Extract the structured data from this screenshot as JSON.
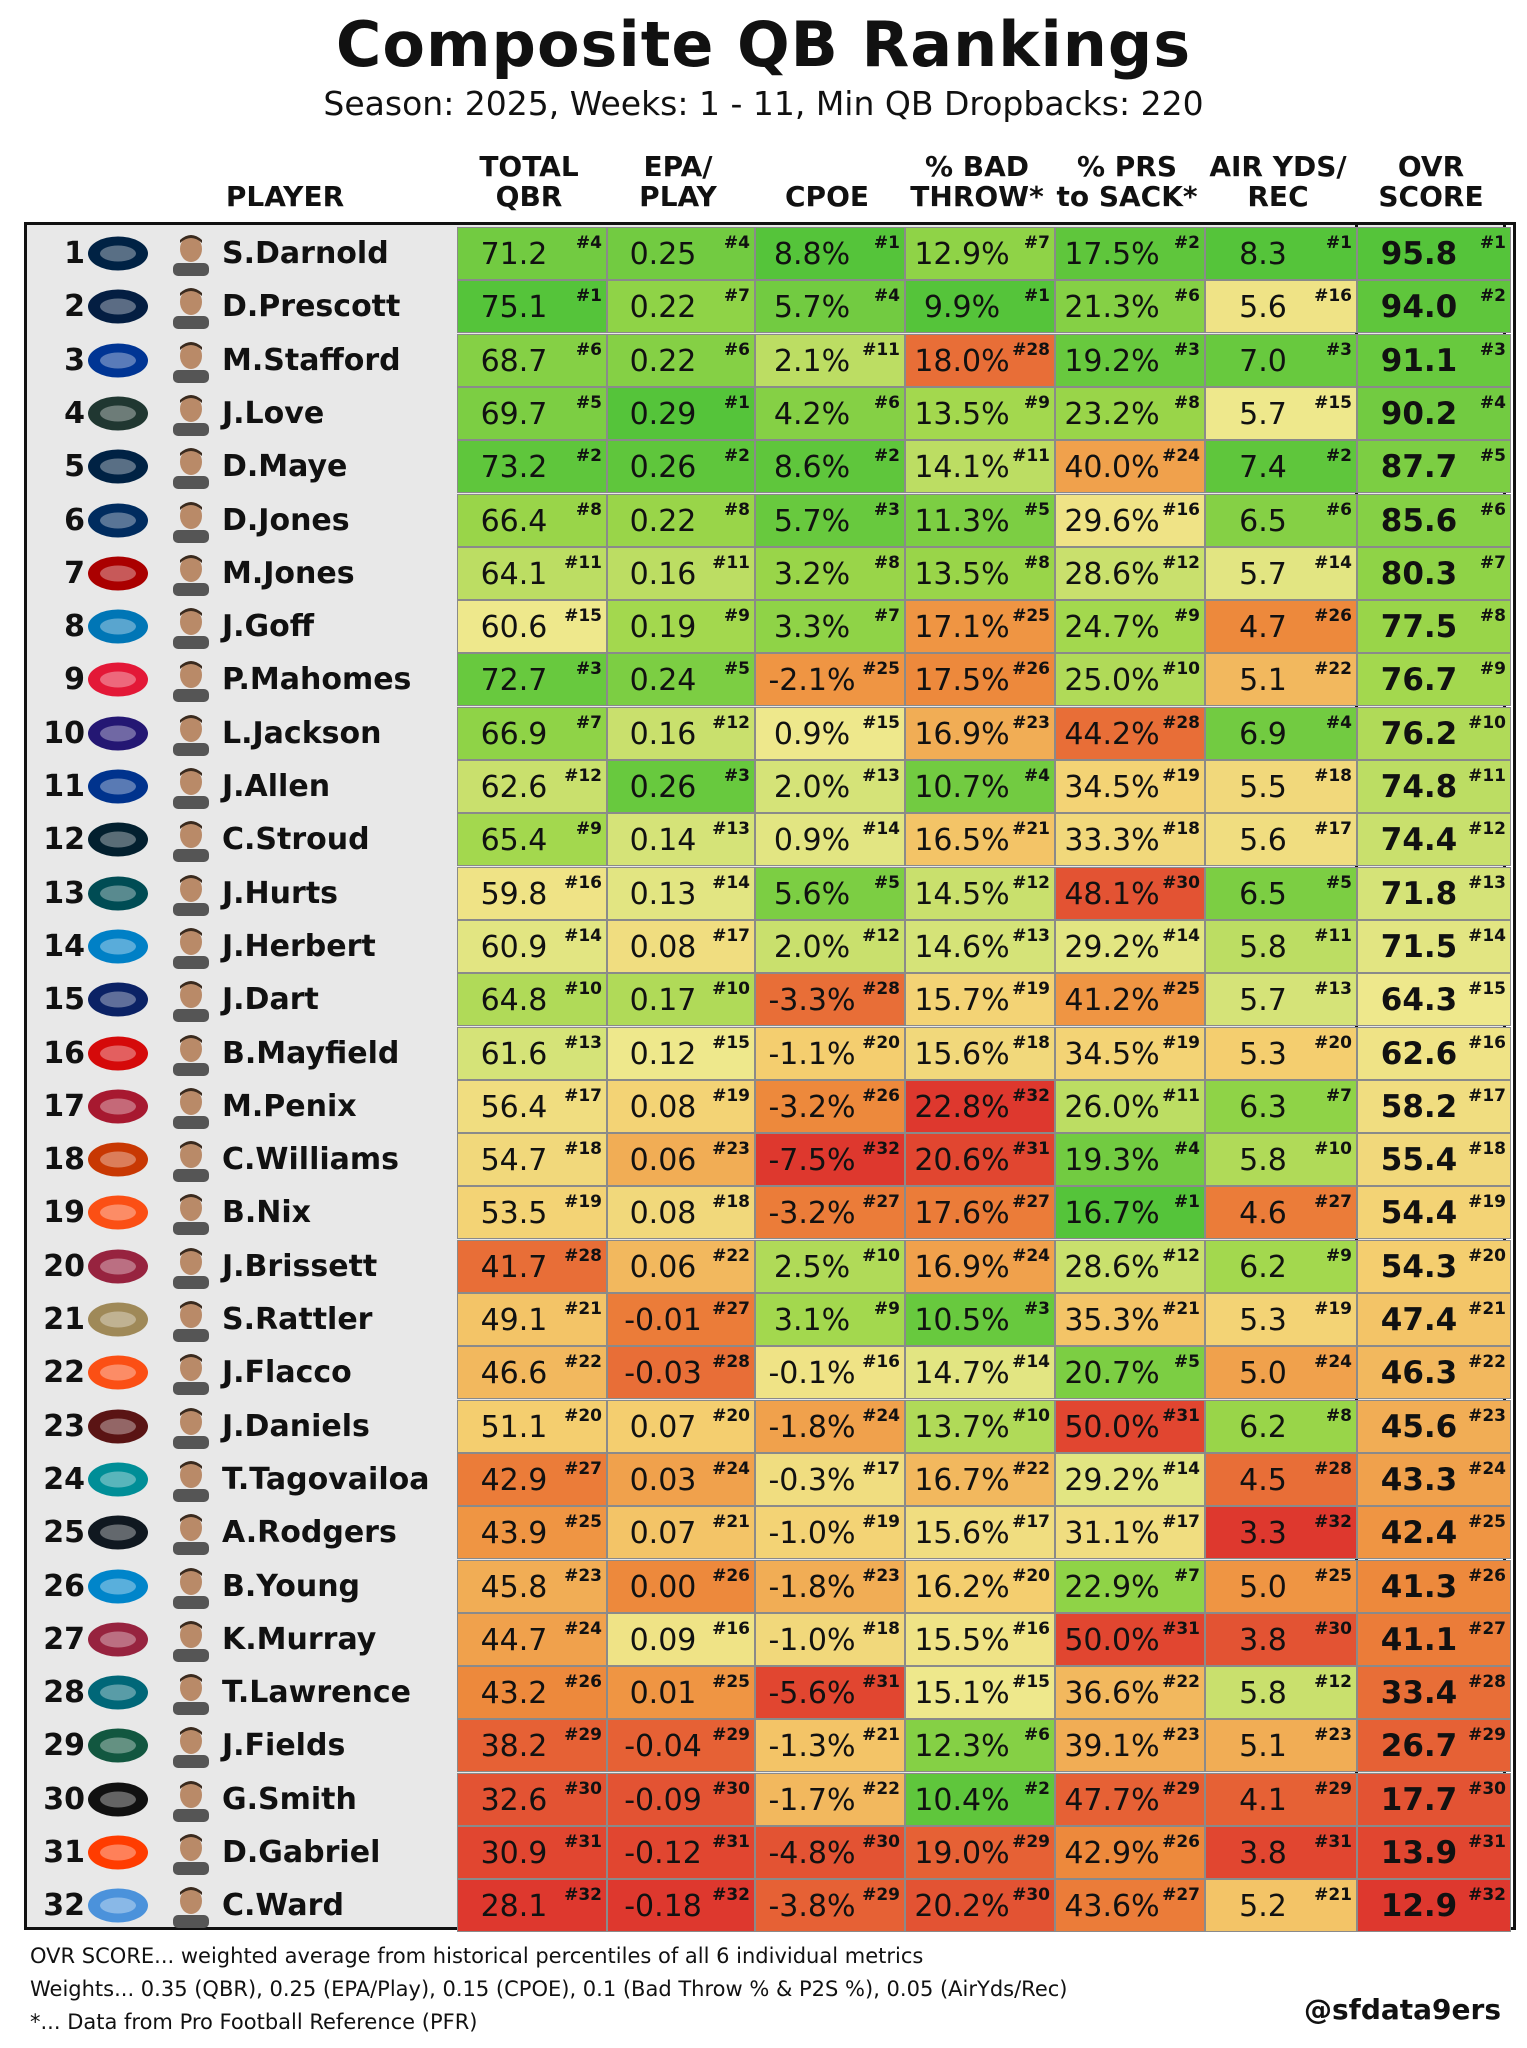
{
  "title": "Composite QB Rankings",
  "subtitle": "Season: 2025, Weeks: 1 - 11, Min QB Dropbacks: 220",
  "footer": {
    "line1": "OVR SCORE... weighted average from historical percentiles of all 6 individual metrics",
    "line2": "Weights... 0.35 (QBR), 0.25 (EPA/Play), 0.15 (CPOE), 0.1 (Bad Throw % & P2S %), 0.05 (AirYds/Rec)",
    "line3": "*... Data from Pro Football Reference (PFR)",
    "handle": "@sfdata9ers"
  },
  "chart_data": {
    "type": "table",
    "title": "Composite QB Rankings",
    "subtitle": "Season: 2025, Weeks: 1 - 11, Min QB Dropbacks: 220",
    "columns": [
      {
        "key": "player",
        "label": "PLAYER"
      },
      {
        "key": "qbr",
        "label": "TOTAL\nQBR"
      },
      {
        "key": "epa",
        "label": "EPA/\nPLAY"
      },
      {
        "key": "cpoe",
        "label": "CPOE"
      },
      {
        "key": "bad",
        "label": "% BAD\nTHROW*"
      },
      {
        "key": "prs",
        "label": "% PRS\nto SACK*"
      },
      {
        "key": "air",
        "label": "AIR YDS/\nREC"
      },
      {
        "key": "ovr",
        "label": "OVR\nSCORE"
      }
    ],
    "colors": {
      "best": "#55c43a",
      "mid": "#f5e88d",
      "worst": "#e03c31"
    },
    "rows": [
      {
        "rank": "1",
        "player": "S.Darnold",
        "team_icon": "seahawks-logo-icon",
        "qbr": [
          "71.2",
          4
        ],
        "epa": [
          "0.25",
          4
        ],
        "cpoe": [
          "8.8%",
          1
        ],
        "bad": [
          "12.9%",
          7
        ],
        "prs": [
          "17.5%",
          2
        ],
        "air": [
          "8.3",
          1
        ],
        "ovr": [
          "95.8",
          1
        ]
      },
      {
        "rank": "2",
        "player": "D.Prescott",
        "team_icon": "cowboys-logo-icon",
        "qbr": [
          "75.1",
          1
        ],
        "epa": [
          "0.22",
          7
        ],
        "cpoe": [
          "5.7%",
          4
        ],
        "bad": [
          "9.9%",
          1
        ],
        "prs": [
          "21.3%",
          6
        ],
        "air": [
          "5.6",
          16
        ],
        "ovr": [
          "94.0",
          2
        ]
      },
      {
        "rank": "3",
        "player": "M.Stafford",
        "team_icon": "rams-logo-icon",
        "qbr": [
          "68.7",
          6
        ],
        "epa": [
          "0.22",
          6
        ],
        "cpoe": [
          "2.1%",
          11
        ],
        "bad": [
          "18.0%",
          28
        ],
        "prs": [
          "19.2%",
          3
        ],
        "air": [
          "7.0",
          3
        ],
        "ovr": [
          "91.1",
          3
        ]
      },
      {
        "rank": "4",
        "player": "J.Love",
        "team_icon": "packers-logo-icon",
        "qbr": [
          "69.7",
          5
        ],
        "epa": [
          "0.29",
          1
        ],
        "cpoe": [
          "4.2%",
          6
        ],
        "bad": [
          "13.5%",
          9
        ],
        "prs": [
          "23.2%",
          8
        ],
        "air": [
          "5.7",
          15
        ],
        "ovr": [
          "90.2",
          4
        ]
      },
      {
        "rank": "5",
        "player": "D.Maye",
        "team_icon": "patriots-logo-icon",
        "qbr": [
          "73.2",
          2
        ],
        "epa": [
          "0.26",
          2
        ],
        "cpoe": [
          "8.6%",
          2
        ],
        "bad": [
          "14.1%",
          11
        ],
        "prs": [
          "40.0%",
          24
        ],
        "air": [
          "7.4",
          2
        ],
        "ovr": [
          "87.7",
          5
        ]
      },
      {
        "rank": "6",
        "player": "D.Jones",
        "team_icon": "colts-logo-icon",
        "qbr": [
          "66.4",
          8
        ],
        "epa": [
          "0.22",
          8
        ],
        "cpoe": [
          "5.7%",
          3
        ],
        "bad": [
          "11.3%",
          5
        ],
        "prs": [
          "29.6%",
          16
        ],
        "air": [
          "6.5",
          6
        ],
        "ovr": [
          "85.6",
          6
        ]
      },
      {
        "rank": "7",
        "player": "M.Jones",
        "team_icon": "49ers-logo-icon",
        "qbr": [
          "64.1",
          11
        ],
        "epa": [
          "0.16",
          11
        ],
        "cpoe": [
          "3.2%",
          8
        ],
        "bad": [
          "13.5%",
          8
        ],
        "prs": [
          "28.6%",
          12
        ],
        "air": [
          "5.7",
          14
        ],
        "ovr": [
          "80.3",
          7
        ]
      },
      {
        "rank": "8",
        "player": "J.Goff",
        "team_icon": "lions-logo-icon",
        "qbr": [
          "60.6",
          15
        ],
        "epa": [
          "0.19",
          9
        ],
        "cpoe": [
          "3.3%",
          7
        ],
        "bad": [
          "17.1%",
          25
        ],
        "prs": [
          "24.7%",
          9
        ],
        "air": [
          "4.7",
          26
        ],
        "ovr": [
          "77.5",
          8
        ]
      },
      {
        "rank": "9",
        "player": "P.Mahomes",
        "team_icon": "chiefs-logo-icon",
        "qbr": [
          "72.7",
          3
        ],
        "epa": [
          "0.24",
          5
        ],
        "cpoe": [
          "-2.1%",
          25
        ],
        "bad": [
          "17.5%",
          26
        ],
        "prs": [
          "25.0%",
          10
        ],
        "air": [
          "5.1",
          22
        ],
        "ovr": [
          "76.7",
          9
        ]
      },
      {
        "rank": "10",
        "player": "L.Jackson",
        "team_icon": "ravens-logo-icon",
        "qbr": [
          "66.9",
          7
        ],
        "epa": [
          "0.16",
          12
        ],
        "cpoe": [
          "0.9%",
          15
        ],
        "bad": [
          "16.9%",
          23
        ],
        "prs": [
          "44.2%",
          28
        ],
        "air": [
          "6.9",
          4
        ],
        "ovr": [
          "76.2",
          10
        ]
      },
      {
        "rank": "11",
        "player": "J.Allen",
        "team_icon": "bills-logo-icon",
        "qbr": [
          "62.6",
          12
        ],
        "epa": [
          "0.26",
          3
        ],
        "cpoe": [
          "2.0%",
          13
        ],
        "bad": [
          "10.7%",
          4
        ],
        "prs": [
          "34.5%",
          19
        ],
        "air": [
          "5.5",
          18
        ],
        "ovr": [
          "74.8",
          11
        ]
      },
      {
        "rank": "12",
        "player": "C.Stroud",
        "team_icon": "texans-logo-icon",
        "qbr": [
          "65.4",
          9
        ],
        "epa": [
          "0.14",
          13
        ],
        "cpoe": [
          "0.9%",
          14
        ],
        "bad": [
          "16.5%",
          21
        ],
        "prs": [
          "33.3%",
          18
        ],
        "air": [
          "5.6",
          17
        ],
        "ovr": [
          "74.4",
          12
        ]
      },
      {
        "rank": "13",
        "player": "J.Hurts",
        "team_icon": "eagles-logo-icon",
        "qbr": [
          "59.8",
          16
        ],
        "epa": [
          "0.13",
          14
        ],
        "cpoe": [
          "5.6%",
          5
        ],
        "bad": [
          "14.5%",
          12
        ],
        "prs": [
          "48.1%",
          30
        ],
        "air": [
          "6.5",
          5
        ],
        "ovr": [
          "71.8",
          13
        ]
      },
      {
        "rank": "14",
        "player": "J.Herbert",
        "team_icon": "chargers-logo-icon",
        "qbr": [
          "60.9",
          14
        ],
        "epa": [
          "0.08",
          17
        ],
        "cpoe": [
          "2.0%",
          12
        ],
        "bad": [
          "14.6%",
          13
        ],
        "prs": [
          "29.2%",
          14
        ],
        "air": [
          "5.8",
          11
        ],
        "ovr": [
          "71.5",
          14
        ]
      },
      {
        "rank": "15",
        "player": "J.Dart",
        "team_icon": "giants-logo-icon",
        "qbr": [
          "64.8",
          10
        ],
        "epa": [
          "0.17",
          10
        ],
        "cpoe": [
          "-3.3%",
          28
        ],
        "bad": [
          "15.7%",
          19
        ],
        "prs": [
          "41.2%",
          25
        ],
        "air": [
          "5.7",
          13
        ],
        "ovr": [
          "64.3",
          15
        ]
      },
      {
        "rank": "16",
        "player": "B.Mayfield",
        "team_icon": "buccaneers-logo-icon",
        "qbr": [
          "61.6",
          13
        ],
        "epa": [
          "0.12",
          15
        ],
        "cpoe": [
          "-1.1%",
          20
        ],
        "bad": [
          "15.6%",
          18
        ],
        "prs": [
          "34.5%",
          19
        ],
        "air": [
          "5.3",
          20
        ],
        "ovr": [
          "62.6",
          16
        ]
      },
      {
        "rank": "17",
        "player": "M.Penix",
        "team_icon": "falcons-logo-icon",
        "qbr": [
          "56.4",
          17
        ],
        "epa": [
          "0.08",
          19
        ],
        "cpoe": [
          "-3.2%",
          26
        ],
        "bad": [
          "22.8%",
          32
        ],
        "prs": [
          "26.0%",
          11
        ],
        "air": [
          "6.3",
          7
        ],
        "ovr": [
          "58.2",
          17
        ]
      },
      {
        "rank": "18",
        "player": "C.Williams",
        "team_icon": "bears-logo-icon",
        "qbr": [
          "54.7",
          18
        ],
        "epa": [
          "0.06",
          23
        ],
        "cpoe": [
          "-7.5%",
          32
        ],
        "bad": [
          "20.6%",
          31
        ],
        "prs": [
          "19.3%",
          4
        ],
        "air": [
          "5.8",
          10
        ],
        "ovr": [
          "55.4",
          18
        ]
      },
      {
        "rank": "19",
        "player": "B.Nix",
        "team_icon": "broncos-logo-icon",
        "qbr": [
          "53.5",
          19
        ],
        "epa": [
          "0.08",
          18
        ],
        "cpoe": [
          "-3.2%",
          27
        ],
        "bad": [
          "17.6%",
          27
        ],
        "prs": [
          "16.7%",
          1
        ],
        "air": [
          "4.6",
          27
        ],
        "ovr": [
          "54.4",
          19
        ]
      },
      {
        "rank": "20",
        "player": "J.Brissett",
        "team_icon": "cardinals-logo-icon",
        "qbr": [
          "41.7",
          28
        ],
        "epa": [
          "0.06",
          22
        ],
        "cpoe": [
          "2.5%",
          10
        ],
        "bad": [
          "16.9%",
          24
        ],
        "prs": [
          "28.6%",
          12
        ],
        "air": [
          "6.2",
          9
        ],
        "ovr": [
          "54.3",
          20
        ]
      },
      {
        "rank": "21",
        "player": "S.Rattler",
        "team_icon": "saints-logo-icon",
        "qbr": [
          "49.1",
          21
        ],
        "epa": [
          "-0.01",
          27
        ],
        "cpoe": [
          "3.1%",
          9
        ],
        "bad": [
          "10.5%",
          3
        ],
        "prs": [
          "35.3%",
          21
        ],
        "air": [
          "5.3",
          19
        ],
        "ovr": [
          "47.4",
          21
        ]
      },
      {
        "rank": "22",
        "player": "J.Flacco",
        "team_icon": "bengals-logo-icon",
        "qbr": [
          "46.6",
          22
        ],
        "epa": [
          "-0.03",
          28
        ],
        "cpoe": [
          "-0.1%",
          16
        ],
        "bad": [
          "14.7%",
          14
        ],
        "prs": [
          "20.7%",
          5
        ],
        "air": [
          "5.0",
          24
        ],
        "ovr": [
          "46.3",
          22
        ]
      },
      {
        "rank": "23",
        "player": "J.Daniels",
        "team_icon": "commanders-logo-icon",
        "qbr": [
          "51.1",
          20
        ],
        "epa": [
          "0.07",
          20
        ],
        "cpoe": [
          "-1.8%",
          24
        ],
        "bad": [
          "13.7%",
          10
        ],
        "prs": [
          "50.0%",
          31
        ],
        "air": [
          "6.2",
          8
        ],
        "ovr": [
          "45.6",
          23
        ]
      },
      {
        "rank": "24",
        "player": "T.Tagovailoa",
        "team_icon": "dolphins-logo-icon",
        "qbr": [
          "42.9",
          27
        ],
        "epa": [
          "0.03",
          24
        ],
        "cpoe": [
          "-0.3%",
          17
        ],
        "bad": [
          "16.7%",
          22
        ],
        "prs": [
          "29.2%",
          14
        ],
        "air": [
          "4.5",
          28
        ],
        "ovr": [
          "43.3",
          24
        ]
      },
      {
        "rank": "25",
        "player": "A.Rodgers",
        "team_icon": "steelers-logo-icon",
        "qbr": [
          "43.9",
          25
        ],
        "epa": [
          "0.07",
          21
        ],
        "cpoe": [
          "-1.0%",
          19
        ],
        "bad": [
          "15.6%",
          17
        ],
        "prs": [
          "31.1%",
          17
        ],
        "air": [
          "3.3",
          32
        ],
        "ovr": [
          "42.4",
          25
        ]
      },
      {
        "rank": "26",
        "player": "B.Young",
        "team_icon": "panthers-logo-icon",
        "qbr": [
          "45.8",
          23
        ],
        "epa": [
          "0.00",
          26
        ],
        "cpoe": [
          "-1.8%",
          23
        ],
        "bad": [
          "16.2%",
          20
        ],
        "prs": [
          "22.9%",
          7
        ],
        "air": [
          "5.0",
          25
        ],
        "ovr": [
          "41.3",
          26
        ]
      },
      {
        "rank": "27",
        "player": "K.Murray",
        "team_icon": "cardinals-logo-icon",
        "qbr": [
          "44.7",
          24
        ],
        "epa": [
          "0.09",
          16
        ],
        "cpoe": [
          "-1.0%",
          18
        ],
        "bad": [
          "15.5%",
          16
        ],
        "prs": [
          "50.0%",
          31
        ],
        "air": [
          "3.8",
          30
        ],
        "ovr": [
          "41.1",
          27
        ]
      },
      {
        "rank": "28",
        "player": "T.Lawrence",
        "team_icon": "jaguars-logo-icon",
        "qbr": [
          "43.2",
          26
        ],
        "epa": [
          "0.01",
          25
        ],
        "cpoe": [
          "-5.6%",
          31
        ],
        "bad": [
          "15.1%",
          15
        ],
        "prs": [
          "36.6%",
          22
        ],
        "air": [
          "5.8",
          12
        ],
        "ovr": [
          "33.4",
          28
        ]
      },
      {
        "rank": "29",
        "player": "J.Fields",
        "team_icon": "jets-logo-icon",
        "qbr": [
          "38.2",
          29
        ],
        "epa": [
          "-0.04",
          29
        ],
        "cpoe": [
          "-1.3%",
          21
        ],
        "bad": [
          "12.3%",
          6
        ],
        "prs": [
          "39.1%",
          23
        ],
        "air": [
          "5.1",
          23
        ],
        "ovr": [
          "26.7",
          29
        ]
      },
      {
        "rank": "30",
        "player": "G.Smith",
        "team_icon": "raiders-logo-icon",
        "qbr": [
          "32.6",
          30
        ],
        "epa": [
          "-0.09",
          30
        ],
        "cpoe": [
          "-1.7%",
          22
        ],
        "bad": [
          "10.4%",
          2
        ],
        "prs": [
          "47.7%",
          29
        ],
        "air": [
          "4.1",
          29
        ],
        "ovr": [
          "17.7",
          30
        ]
      },
      {
        "rank": "31",
        "player": "D.Gabriel",
        "team_icon": "browns-logo-icon",
        "qbr": [
          "30.9",
          31
        ],
        "epa": [
          "-0.12",
          31
        ],
        "cpoe": [
          "-4.8%",
          30
        ],
        "bad": [
          "19.0%",
          29
        ],
        "prs": [
          "42.9%",
          26
        ],
        "air": [
          "3.8",
          31
        ],
        "ovr": [
          "13.9",
          31
        ]
      },
      {
        "rank": "32",
        "player": "C.Ward",
        "team_icon": "titans-logo-icon",
        "qbr": [
          "28.1",
          32
        ],
        "epa": [
          "-0.18",
          32
        ],
        "cpoe": [
          "-3.8%",
          29
        ],
        "bad": [
          "20.2%",
          30
        ],
        "prs": [
          "43.6%",
          27
        ],
        "air": [
          "5.2",
          21
        ],
        "ovr": [
          "12.9",
          32
        ]
      }
    ]
  }
}
